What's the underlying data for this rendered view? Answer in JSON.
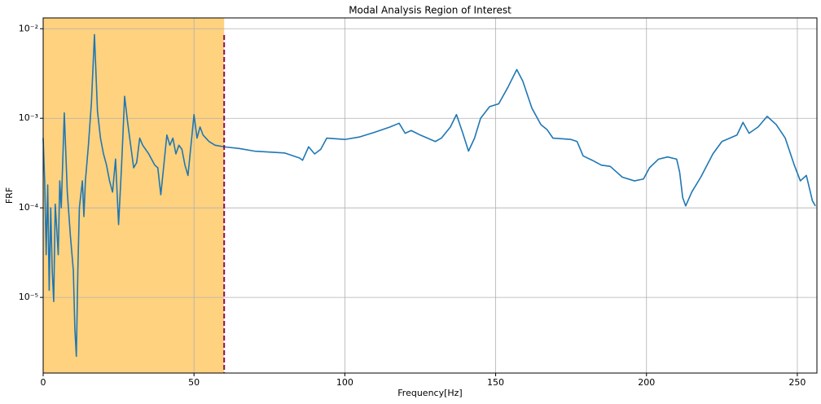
{
  "chart_data": {
    "type": "line",
    "title": "Modal Analysis Region of Interest",
    "x_label": "Frequency[Hz]",
    "y_label": "FRF",
    "log_y": true,
    "grid": true,
    "xlim": [
      0,
      256.5
    ],
    "ylim": [
      1.43e-06,
      0.0132
    ],
    "xticks": [
      0,
      50,
      100,
      150,
      200,
      250
    ],
    "yticks": [
      {
        "value": 1e-05,
        "label": "10⁻⁵"
      },
      {
        "value": 0.0001,
        "label": "10⁻⁴"
      },
      {
        "value": 0.001,
        "label": "10⁻³"
      },
      {
        "value": 0.01,
        "label": "10⁻²"
      }
    ],
    "shade": {
      "xmin": 0,
      "xmax": 60,
      "color": "#ffd27f"
    },
    "vline": {
      "x": 60,
      "ymax": 0.0085,
      "color": "#8b0a5a"
    },
    "x": [
      0,
      0.5,
      1,
      1.5,
      2,
      2.5,
      3,
      3.5,
      4,
      5,
      5.5,
      6,
      7,
      8,
      9,
      10,
      10.5,
      11,
      11.5,
      12,
      13,
      13.5,
      14,
      15,
      16,
      17,
      18,
      19,
      20,
      21,
      22,
      23,
      24,
      25,
      26,
      27,
      28,
      29,
      30,
      31,
      32,
      33,
      35,
      37,
      38,
      39,
      40,
      41,
      42,
      43,
      44,
      45,
      46,
      47,
      48,
      49,
      50,
      51,
      52,
      53,
      55,
      57,
      60,
      65,
      70,
      80,
      85,
      86,
      88,
      90,
      92,
      94,
      100,
      105,
      110,
      115,
      118,
      120,
      122,
      125,
      130,
      132,
      135,
      137,
      139,
      141,
      143,
      145,
      148,
      151,
      154,
      157,
      159,
      162,
      165,
      167,
      169,
      175,
      177,
      179,
      182,
      185,
      188,
      192,
      196,
      199,
      201,
      204,
      207,
      210,
      211,
      212,
      213,
      215,
      218,
      222,
      225,
      230,
      232,
      234,
      237,
      240,
      243,
      246,
      249,
      251,
      253,
      255,
      256
    ],
    "series": [
      {
        "name": "FRF",
        "color": "#1f77b4",
        "values": [
          0.0006,
          0.0002,
          3e-05,
          0.00018,
          1.2e-05,
          0.0001,
          2e-05,
          9e-06,
          0.00011,
          3e-05,
          0.0002,
          0.0001,
          0.00115,
          0.00015,
          5e-05,
          2e-05,
          4.5e-06,
          2.2e-06,
          2e-05,
          0.0001,
          0.0002,
          8e-05,
          0.0002,
          0.0005,
          0.0015,
          0.0086,
          0.0012,
          0.0006,
          0.0004,
          0.0003,
          0.0002,
          0.00015,
          0.00035,
          6.5e-05,
          0.0003,
          0.00176,
          0.0009,
          0.0005,
          0.00028,
          0.00032,
          0.0006,
          0.0005,
          0.0004,
          0.0003,
          0.00028,
          0.00014,
          0.0003,
          0.00065,
          0.0005,
          0.0006,
          0.0004,
          0.0005,
          0.00045,
          0.0003,
          0.00023,
          0.0005,
          0.0011,
          0.0006,
          0.0008,
          0.00065,
          0.00055,
          0.0005,
          0.00048,
          0.00046,
          0.00043,
          0.00041,
          0.00036,
          0.00034,
          0.00048,
          0.0004,
          0.00045,
          0.0006,
          0.00058,
          0.00062,
          0.0007,
          0.0008,
          0.00088,
          0.00068,
          0.00073,
          0.00065,
          0.00055,
          0.0006,
          0.0008,
          0.0011,
          0.0007,
          0.00043,
          0.0006,
          0.001,
          0.00135,
          0.00145,
          0.0022,
          0.0035,
          0.0026,
          0.0013,
          0.00085,
          0.00075,
          0.0006,
          0.00058,
          0.00055,
          0.00038,
          0.00034,
          0.0003,
          0.00029,
          0.00022,
          0.0002,
          0.00021,
          0.00028,
          0.00035,
          0.00037,
          0.00035,
          0.00025,
          0.00013,
          0.000105,
          0.00015,
          0.00022,
          0.0004,
          0.00055,
          0.00065,
          0.0009,
          0.00068,
          0.0008,
          0.00105,
          0.00085,
          0.0006,
          0.0003,
          0.0002,
          0.00023,
          0.00012,
          0.000105
        ]
      }
    ]
  }
}
